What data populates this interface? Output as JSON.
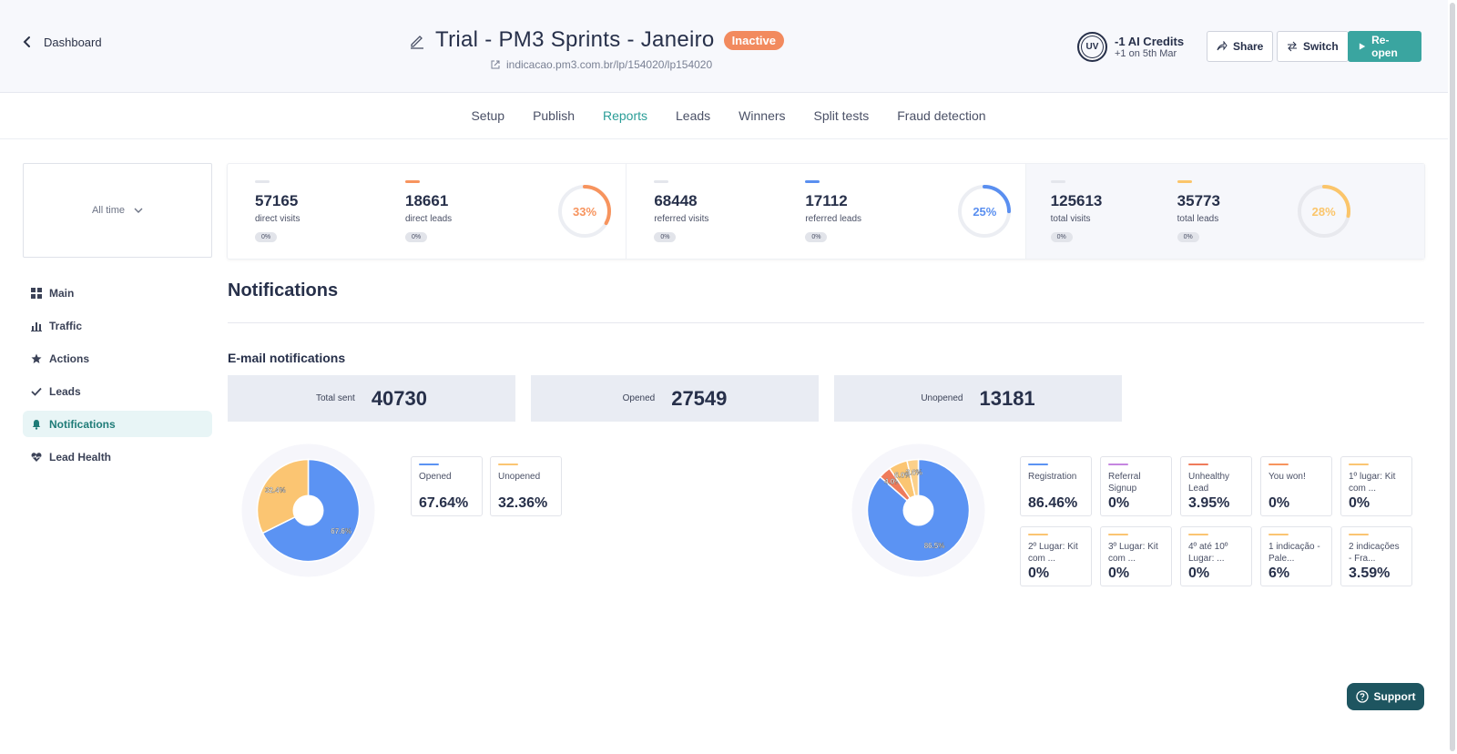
{
  "header": {
    "back_label": "Dashboard",
    "title": "Trial - PM3 Sprints - Janeiro",
    "status": "Inactive",
    "url": "indicacao.pm3.com.br/lp/154020/lp154020",
    "avatar": "UV",
    "credits_title": "-1 AI Credits",
    "credits_sub": "+1 on 5th Mar",
    "share_label": "Share",
    "switch_label": "Switch",
    "reopen_label": "Re-open"
  },
  "tabs": [
    {
      "label": "Setup"
    },
    {
      "label": "Publish"
    },
    {
      "label": "Reports",
      "active": true
    },
    {
      "label": "Leads"
    },
    {
      "label": "Winners"
    },
    {
      "label": "Split tests"
    },
    {
      "label": "Fraud detection"
    }
  ],
  "timefilter": {
    "label": "All time"
  },
  "sidebar": {
    "items": [
      {
        "label": "Main",
        "icon": "grid-icon"
      },
      {
        "label": "Traffic",
        "icon": "bar-chart-icon"
      },
      {
        "label": "Actions",
        "icon": "star-icon"
      },
      {
        "label": "Leads",
        "icon": "check-icon"
      },
      {
        "label": "Notifications",
        "icon": "bell-icon",
        "active": true
      },
      {
        "label": "Lead Health",
        "icon": "heart-pulse-icon"
      }
    ]
  },
  "stats": {
    "direct": {
      "visits": "57165",
      "visits_label": "direct visits",
      "visits_change": "0%",
      "leads": "18661",
      "leads_label": "direct leads",
      "leads_change": "0%",
      "rate": "33%",
      "rate_value": 0.33,
      "color": "#f7945e"
    },
    "referred": {
      "visits": "68448",
      "visits_label": "referred visits",
      "visits_change": "0%",
      "leads": "17112",
      "leads_label": "referred leads",
      "leads_change": "0%",
      "rate": "25%",
      "rate_value": 0.25,
      "color": "#5a8ff0"
    },
    "total": {
      "visits": "125613",
      "visits_label": "total visits",
      "visits_change": "0%",
      "leads": "35773",
      "leads_label": "total leads",
      "leads_change": "0%",
      "rate": "28%",
      "rate_value": 0.28,
      "color": "#fbc56a"
    }
  },
  "notifications": {
    "title": "Notifications",
    "email_title": "E-mail notifications",
    "totals": [
      {
        "label": "Total sent",
        "value": "40730"
      },
      {
        "label": "Opened",
        "value": "27549"
      },
      {
        "label": "Unopened",
        "value": "13181"
      }
    ],
    "pie1": {
      "slices": [
        {
          "name": "Opened",
          "value": 67.64,
          "label": "67.6%",
          "color": "#5b93f3"
        },
        {
          "name": "Unopened",
          "value": 32.36,
          "label": "32.4%",
          "color": "#fbc572"
        }
      ],
      "legend": [
        {
          "name": "Opened",
          "value": "67.64%",
          "color": "#5b93f3"
        },
        {
          "name": "Unopened",
          "value": "32.36%",
          "color": "#fbc572"
        }
      ]
    },
    "pie2": {
      "slices": [
        {
          "name": "Registration",
          "value": 86.46,
          "label": "86.5%",
          "color": "#5b93f3"
        },
        {
          "name": "Unhealthy Lead",
          "value": 3.95,
          "label": "4.0%",
          "color": "#ef7b5b"
        },
        {
          "name": "1 indicação - Pale...",
          "value": 6.0,
          "label": "6.0%",
          "color": "#fbc572"
        },
        {
          "name": "2 indicações - Fra...",
          "value": 3.59,
          "label": "3.6%",
          "color": "#fbd08a"
        }
      ],
      "legend": [
        {
          "name": "Registration",
          "value": "86.46%",
          "color": "#5b93f3"
        },
        {
          "name": "Referral Signup",
          "value": "0%",
          "color": "#c586e0"
        },
        {
          "name": "Unhealthy Lead",
          "value": "3.95%",
          "color": "#ef7b5b"
        },
        {
          "name": "You won!",
          "value": "0%",
          "color": "#f7945e"
        },
        {
          "name": "1º lugar: Kit com ...",
          "value": "0%",
          "color": "#fbc572"
        },
        {
          "name": "2º Lugar: Kit com ...",
          "value": "0%",
          "color": "#fbc572"
        },
        {
          "name": "3º Lugar: Kit com ...",
          "value": "0%",
          "color": "#fbc572"
        },
        {
          "name": "4º até 10º Lugar: ...",
          "value": "0%",
          "color": "#fbc572"
        },
        {
          "name": "1 indicação - Pale...",
          "value": "6%",
          "color": "#fbc572"
        },
        {
          "name": "2 indicações - Fra...",
          "value": "3.59%",
          "color": "#fbc572"
        }
      ]
    }
  },
  "support_label": "Support"
}
